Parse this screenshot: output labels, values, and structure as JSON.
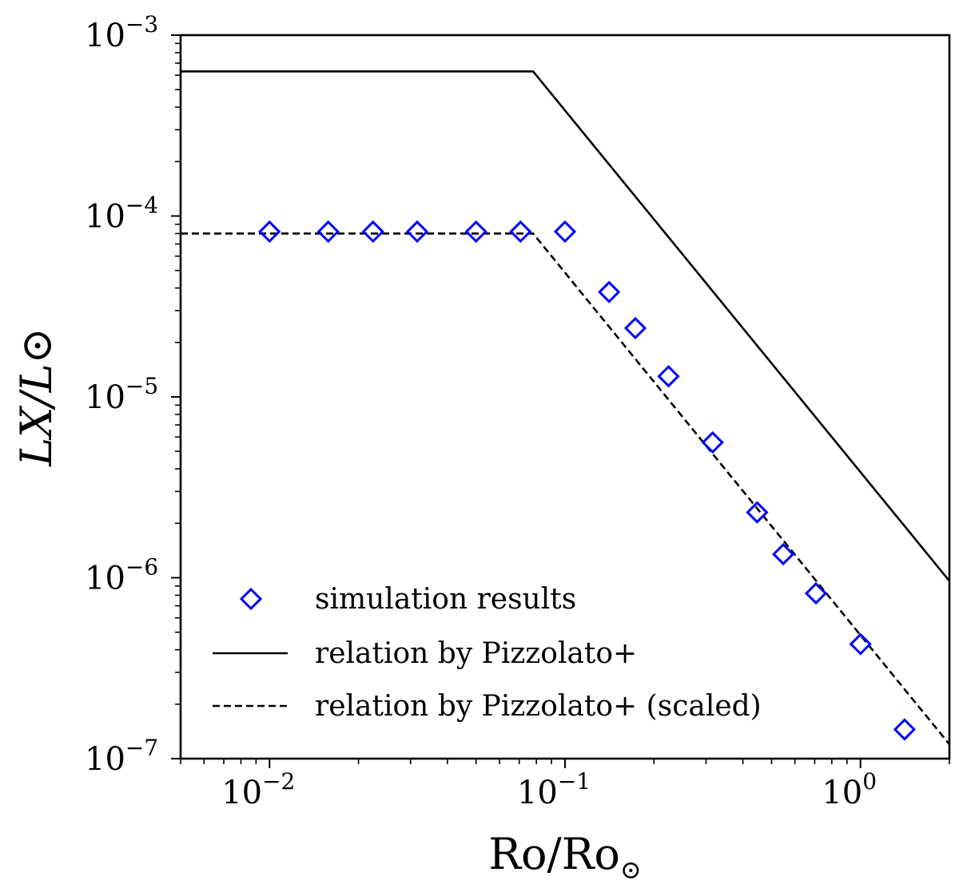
{
  "chart_data": {
    "type": "scatter",
    "xscale": "log",
    "yscale": "log",
    "xlim": [
      0.005,
      2.0
    ],
    "ylim": [
      1e-07,
      0.001
    ],
    "xlabel": "Ro/Ro⊙",
    "ylabel": "LX/L⊙",
    "x_ticks": [
      {
        "value": 0.01,
        "base": "10",
        "exp": "−2"
      },
      {
        "value": 0.1,
        "base": "10",
        "exp": "−1"
      },
      {
        "value": 1,
        "base": "10",
        "exp": "0"
      }
    ],
    "y_ticks": [
      {
        "value": 0.001,
        "base": "10",
        "exp": "−3"
      },
      {
        "value": 0.0001,
        "base": "10",
        "exp": "−4"
      },
      {
        "value": 1e-05,
        "base": "10",
        "exp": "−5"
      },
      {
        "value": 1e-06,
        "base": "10",
        "exp": "−6"
      },
      {
        "value": 1e-07,
        "base": "10",
        "exp": "−7"
      }
    ],
    "series": [
      {
        "name": "simulation results",
        "kind": "markers",
        "marker": "diamond",
        "color": "#0000ff",
        "x": [
          0.01,
          0.0158,
          0.0224,
          0.0316,
          0.05,
          0.0707,
          0.1,
          0.141,
          0.173,
          0.224,
          0.316,
          0.447,
          0.548,
          0.707,
          1.0,
          1.41
        ],
        "y": [
          8.2e-05,
          8.2e-05,
          8.2e-05,
          8.2e-05,
          8.2e-05,
          8.2e-05,
          8.2e-05,
          3.8e-05,
          2.4e-05,
          1.3e-05,
          5.6e-06,
          2.3e-06,
          1.35e-06,
          8.2e-07,
          4.3e-07,
          1.45e-07
        ]
      },
      {
        "name": "relation by Pizzolato+",
        "kind": "line",
        "dash": "solid",
        "color": "#000000",
        "x": [
          0.005,
          0.078,
          2.0
        ],
        "y": [
          0.00063,
          0.00063,
          9.6e-07
        ]
      },
      {
        "name": "relation by Pizzolato+ (scaled)",
        "kind": "line",
        "dash": "dashed",
        "color": "#000000",
        "x": [
          0.005,
          0.078,
          2.0
        ],
        "y": [
          8e-05,
          8e-05,
          1.2e-07
        ]
      }
    ],
    "legend": {
      "position": "lower-left"
    }
  }
}
